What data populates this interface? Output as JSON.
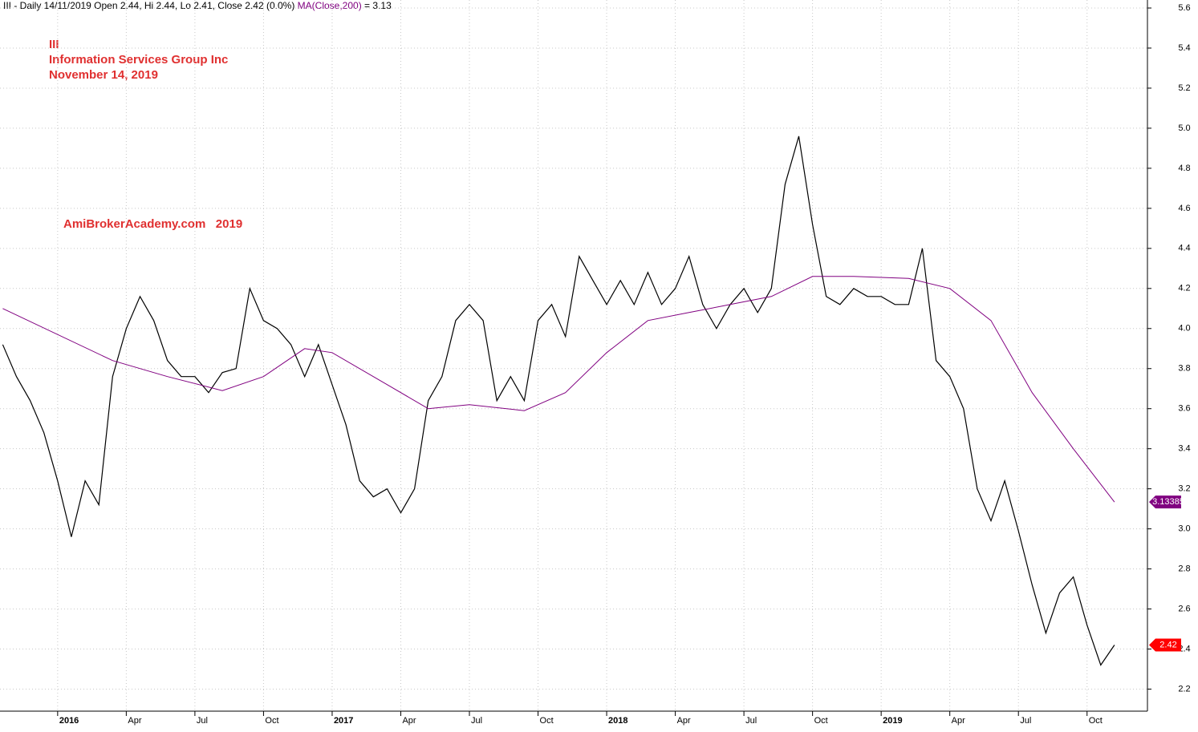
{
  "chart_data": {
    "type": "line",
    "header": [
      "III - Daily 14/11/2019 Open 2.44, Hi 2.44, Lo 2.41, Close 2.42 (0.0%)",
      "MA(Close,200)",
      "= 3.13"
    ],
    "title": [
      "III",
      "Information Services Group Inc",
      "November 14, 2019"
    ],
    "watermark": "AmiBrokerAcademy.com   2019",
    "xlim": [
      2015.79,
      2019.97
    ],
    "ylim": [
      2.09,
      5.64
    ],
    "xticks": [
      2016,
      {
        "value": 2016.25,
        "label": "Apr"
      },
      {
        "value": 2016.5,
        "label": "Jul"
      },
      {
        "value": 2016.75,
        "label": "Oct"
      },
      2017,
      {
        "value": 2017.25,
        "label": "Apr"
      },
      {
        "value": 2017.5,
        "label": "Jul"
      },
      {
        "value": 2017.75,
        "label": "Oct"
      },
      2018,
      {
        "value": 2018.25,
        "label": "Apr"
      },
      {
        "value": 2018.5,
        "label": "Jul"
      },
      {
        "value": 2018.75,
        "label": "Oct"
      },
      2019,
      {
        "value": 2019.25,
        "label": "Apr"
      },
      {
        "value": 2019.5,
        "label": "Jul"
      },
      {
        "value": 2019.75,
        "label": "Oct"
      }
    ],
    "yticks": [
      2.2,
      2.4,
      2.6,
      2.8,
      {
        "value": 3,
        "label": "3.0"
      },
      3.2,
      3.4,
      3.6,
      3.8,
      {
        "value": 4,
        "label": "4.0"
      },
      4.2,
      4.4,
      4.6,
      4.8,
      {
        "value": 5,
        "label": "5.0"
      },
      5.2,
      5.4,
      5.6
    ],
    "grid": true,
    "series": [
      {
        "color": "#000000",
        "x": [
          2015.8,
          2015.85,
          2015.9,
          2015.95,
          2016.0,
          2016.05,
          2016.1,
          2016.15,
          2016.2,
          2016.25,
          2016.3,
          2016.35,
          2016.4,
          2016.45,
          2016.5,
          2016.55,
          2016.6,
          2016.65,
          2016.7,
          2016.75,
          2016.8,
          2016.85,
          2016.9,
          2016.95,
          2017.0,
          2017.05,
          2017.1,
          2017.15,
          2017.2,
          2017.25,
          2017.3,
          2017.35,
          2017.4,
          2017.45,
          2017.5,
          2017.55,
          2017.6,
          2017.65,
          2017.7,
          2017.75,
          2017.8,
          2017.85,
          2017.9,
          2017.95,
          2018.0,
          2018.05,
          2018.1,
          2018.15,
          2018.2,
          2018.25,
          2018.3,
          2018.35,
          2018.4,
          2018.45,
          2018.5,
          2018.55,
          2018.6,
          2018.65,
          2018.7,
          2018.75,
          2018.8,
          2018.85,
          2018.9,
          2018.95,
          2019.0,
          2019.05,
          2019.1,
          2019.15,
          2019.2,
          2019.25,
          2019.3,
          2019.35,
          2019.4,
          2019.45,
          2019.5,
          2019.55,
          2019.6,
          2019.65,
          2019.7,
          2019.75,
          2019.8,
          2019.85
        ],
        "values": [
          3.92,
          3.76,
          3.64,
          3.48,
          3.24,
          2.96,
          3.24,
          3.12,
          3.76,
          4.0,
          4.16,
          4.04,
          3.84,
          3.76,
          3.76,
          3.68,
          3.78,
          3.8,
          4.2,
          4.04,
          4.0,
          3.92,
          3.76,
          3.92,
          3.72,
          3.52,
          3.24,
          3.16,
          3.2,
          3.08,
          3.2,
          3.64,
          3.76,
          4.04,
          4.12,
          4.04,
          3.64,
          3.76,
          3.64,
          4.04,
          4.12,
          3.96,
          4.36,
          4.24,
          4.12,
          4.24,
          4.12,
          4.28,
          4.12,
          4.2,
          4.36,
          4.12,
          4.0,
          4.12,
          4.2,
          4.08,
          4.2,
          4.72,
          4.96,
          4.52,
          4.16,
          4.12,
          4.2,
          4.16,
          4.16,
          4.12,
          4.12,
          4.4,
          3.84,
          3.76,
          3.6,
          3.2,
          3.04,
          3.24,
          2.99,
          2.72,
          2.48,
          2.68,
          2.76,
          2.52,
          2.32,
          2.42
        ],
        "label_color": "#ff0000"
      },
      {
        "color": "#800080",
        "x": [
          2015.8,
          2016.2,
          2016.4,
          2016.6,
          2016.75,
          2016.9,
          2017.0,
          2017.2,
          2017.35,
          2017.5,
          2017.7,
          2017.85,
          2018.0,
          2018.15,
          2018.3,
          2018.45,
          2018.6,
          2018.75,
          2018.9,
          2019.1,
          2019.25,
          2019.4,
          2019.55,
          2019.7,
          2019.85
        ],
        "values": [
          4.1,
          3.84,
          3.76,
          3.69,
          3.76,
          3.9,
          3.88,
          3.72,
          3.6,
          3.62,
          3.59,
          3.68,
          3.88,
          4.04,
          4.08,
          4.12,
          4.16,
          4.26,
          4.26,
          4.25,
          4.2,
          4.04,
          3.68,
          3.4,
          3.13385
        ],
        "label_color": "#800080"
      }
    ]
  }
}
